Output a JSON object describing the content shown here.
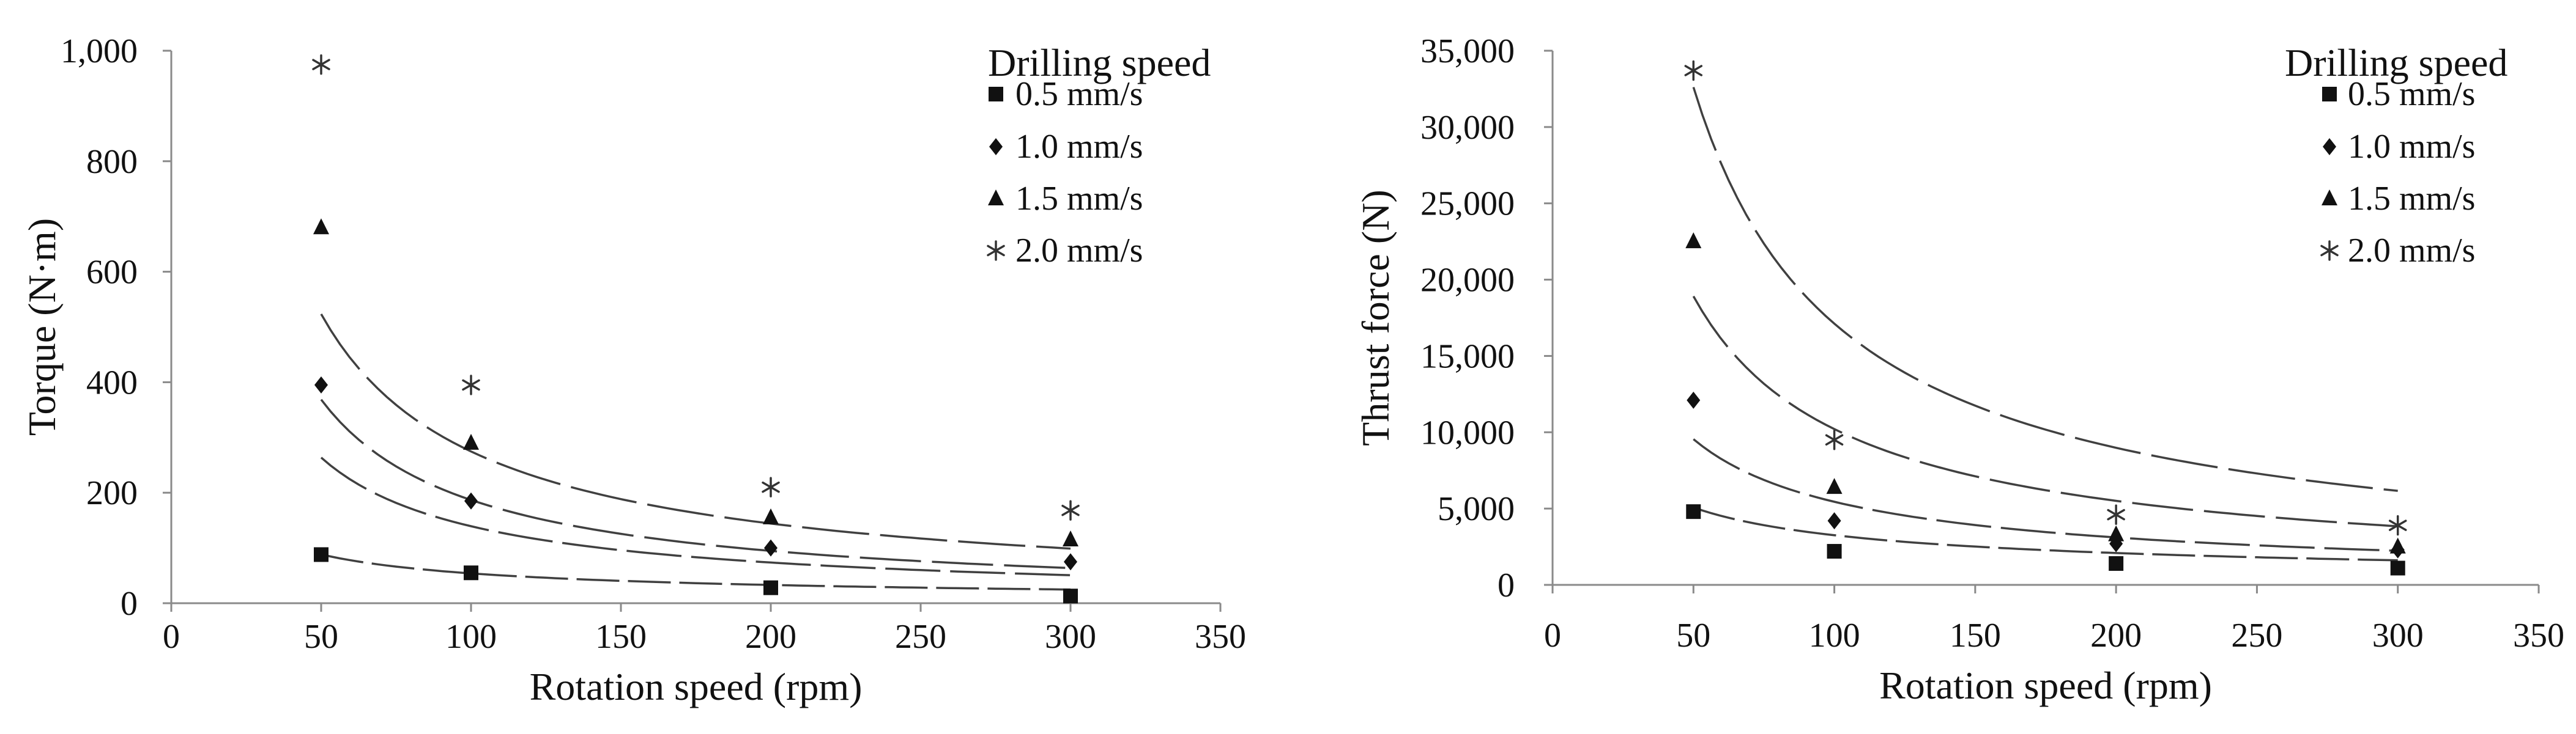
{
  "chart_data": [
    {
      "type": "scatter",
      "id": "torque",
      "xlabel": "Rotation speed (rpm)",
      "ylabel": "Torque (N·m)",
      "xlim": [
        0,
        350
      ],
      "ylim": [
        0,
        1000
      ],
      "x_ticks": [
        0,
        50,
        100,
        150,
        200,
        250,
        300,
        350
      ],
      "x_tick_labels": [
        "0",
        "50",
        "100",
        "150",
        "200",
        "250",
        "300",
        "350"
      ],
      "y_ticks": [
        0,
        200,
        400,
        600,
        800,
        1000
      ],
      "y_tick_labels": [
        "0",
        "200",
        "400",
        "600",
        "800",
        "1,000"
      ],
      "grid": false,
      "legend_title": "Drilling speed",
      "legend_position": "top-right",
      "trendline": "power",
      "series": [
        {
          "name": "0.5 mm/s",
          "marker": "square",
          "x": [
            50,
            100,
            200,
            300
          ],
          "y": [
            88,
            55,
            28,
            13
          ],
          "fit": {
            "a": 1420,
            "b": -0.71
          }
        },
        {
          "name": "1.0 mm/s",
          "marker": "diamond",
          "x": [
            50,
            100,
            200,
            300
          ],
          "y": [
            395,
            185,
            100,
            75
          ],
          "fit": {
            "a": 9640,
            "b": -0.92
          }
        },
        {
          "name": "1.5 mm/s",
          "marker": "triangle",
          "x": [
            50,
            100,
            200,
            300
          ],
          "y": [
            680,
            290,
            155,
            115
          ],
          "fit": {
            "a": 17040,
            "b": -0.98
          }
        },
        {
          "name": "2.0 mm/s",
          "marker": "asterisk",
          "x": [
            50,
            100,
            200,
            300
          ],
          "y": [
            975,
            395,
            210,
            168
          ],
          "fit": {
            "a": 19900,
            "b": -0.93
          }
        }
      ]
    },
    {
      "type": "scatter",
      "id": "thrust",
      "xlabel": "Rotation speed (rpm)",
      "ylabel": "Thrust force (N)",
      "xlim": [
        0,
        350
      ],
      "ylim": [
        0,
        35000
      ],
      "x_ticks": [
        0,
        50,
        100,
        150,
        200,
        250,
        300,
        350
      ],
      "x_tick_labels": [
        "0",
        "50",
        "100",
        "150",
        "200",
        "250",
        "300",
        "350"
      ],
      "y_ticks": [
        0,
        5000,
        10000,
        15000,
        20000,
        25000,
        30000,
        35000
      ],
      "y_tick_labels": [
        "0",
        "5,000",
        "10,000",
        "15,000",
        "20,000",
        "25,000",
        "30,000",
        "35,000"
      ],
      "grid": false,
      "legend_title": "Drilling speed",
      "legend_position": "top-right",
      "trendline": "power",
      "series": [
        {
          "name": "0.5 mm/s",
          "marker": "square",
          "x": [
            50,
            100,
            200,
            300
          ],
          "y": [
            4800,
            2200,
            1400,
            1100
          ],
          "fit": {
            "a": 62000,
            "b": -0.64
          }
        },
        {
          "name": "1.0 mm/s",
          "marker": "diamond",
          "x": [
            50,
            100,
            200,
            300
          ],
          "y": [
            12100,
            4200,
            2700,
            2300
          ],
          "fit": {
            "a": 227000,
            "b": -0.81
          }
        },
        {
          "name": "1.5 mm/s",
          "marker": "triangle",
          "x": [
            50,
            100,
            200,
            300
          ],
          "y": [
            22500,
            6400,
            3300,
            2500
          ],
          "fit": {
            "a": 615000,
            "b": -0.89
          }
        },
        {
          "name": "2.0 mm/s",
          "marker": "asterisk",
          "x": [
            50,
            100,
            200,
            300
          ],
          "y": [
            33700,
            9500,
            4600,
            3900
          ],
          "fit": {
            "a": 1240000,
            "b": -0.93
          }
        }
      ]
    }
  ]
}
